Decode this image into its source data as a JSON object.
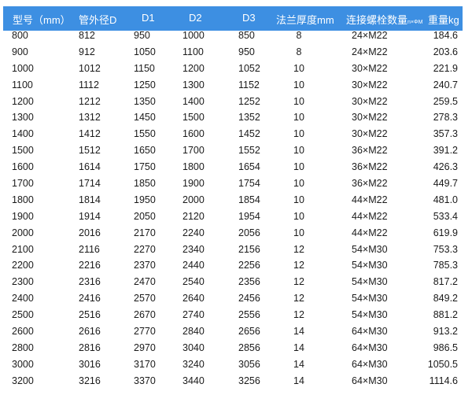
{
  "header": {
    "model": "型号（mm）",
    "outer_diameter": "管外径D",
    "d1": "D1",
    "d2": "D2",
    "d3": "D3",
    "flange_thickness": "法兰厚度mm",
    "bolts": "连接螺栓数量",
    "bolts_unit": "n×ΦM",
    "weight": "重量kg"
  },
  "colors": {
    "header_bg": "#3d8fe2",
    "header_text": "#ffffff"
  },
  "rows": [
    [
      "800",
      "812",
      "950",
      "1000",
      "850",
      "8",
      "24×M22",
      "184.6"
    ],
    [
      "900",
      "912",
      "1050",
      "1100",
      "950",
      "8",
      "24×M22",
      "203.6"
    ],
    [
      "1000",
      "1012",
      "1150",
      "1200",
      "1052",
      "10",
      "30×M22",
      "221.9"
    ],
    [
      "1100",
      "1112",
      "1250",
      "1300",
      "1152",
      "10",
      "30×M22",
      "240.7"
    ],
    [
      "1200",
      "1212",
      "1350",
      "1400",
      "1252",
      "10",
      "30×M22",
      "259.5"
    ],
    [
      "1300",
      "1312",
      "1450",
      "1500",
      "1352",
      "10",
      "30×M22",
      "278.3"
    ],
    [
      "1400",
      "1412",
      "1550",
      "1600",
      "1452",
      "10",
      "30×M22",
      "357.3"
    ],
    [
      "1500",
      "1512",
      "1650",
      "1700",
      "1552",
      "10",
      "36×M22",
      "391.2"
    ],
    [
      "1600",
      "1614",
      "1750",
      "1800",
      "1654",
      "10",
      "36×M22",
      "426.3"
    ],
    [
      "1700",
      "1714",
      "1850",
      "1900",
      "1754",
      "10",
      "36×M22",
      "449.7"
    ],
    [
      "1800",
      "1814",
      "1950",
      "2000",
      "1854",
      "10",
      "44×M22",
      "481.0"
    ],
    [
      "1900",
      "1914",
      "2050",
      "2120",
      "1954",
      "10",
      "44×M22",
      "533.4"
    ],
    [
      "2000",
      "2016",
      "2170",
      "2240",
      "2056",
      "10",
      "44×M22",
      "619.9"
    ],
    [
      "2100",
      "2116",
      "2270",
      "2340",
      "2156",
      "12",
      "54×M30",
      "753.3"
    ],
    [
      "2200",
      "2216",
      "2370",
      "2440",
      "2256",
      "12",
      "54×M30",
      "785.3"
    ],
    [
      "2300",
      "2316",
      "2470",
      "2540",
      "2356",
      "12",
      "54×M30",
      "817.2"
    ],
    [
      "2400",
      "2416",
      "2570",
      "2640",
      "2456",
      "12",
      "54×M30",
      "849.2"
    ],
    [
      "2500",
      "2516",
      "2670",
      "2740",
      "2556",
      "12",
      "54×M30",
      "881.2"
    ],
    [
      "2600",
      "2616",
      "2770",
      "2840",
      "2656",
      "14",
      "64×M30",
      "913.2"
    ],
    [
      "2800",
      "2816",
      "2970",
      "3040",
      "2856",
      "14",
      "64×M30",
      "986.5"
    ],
    [
      "3000",
      "3016",
      "3170",
      "3240",
      "3056",
      "14",
      "64×M30",
      "1050.5"
    ],
    [
      "3200",
      "3216",
      "3370",
      "3440",
      "3256",
      "14",
      "64×M30",
      "1114.6"
    ]
  ]
}
